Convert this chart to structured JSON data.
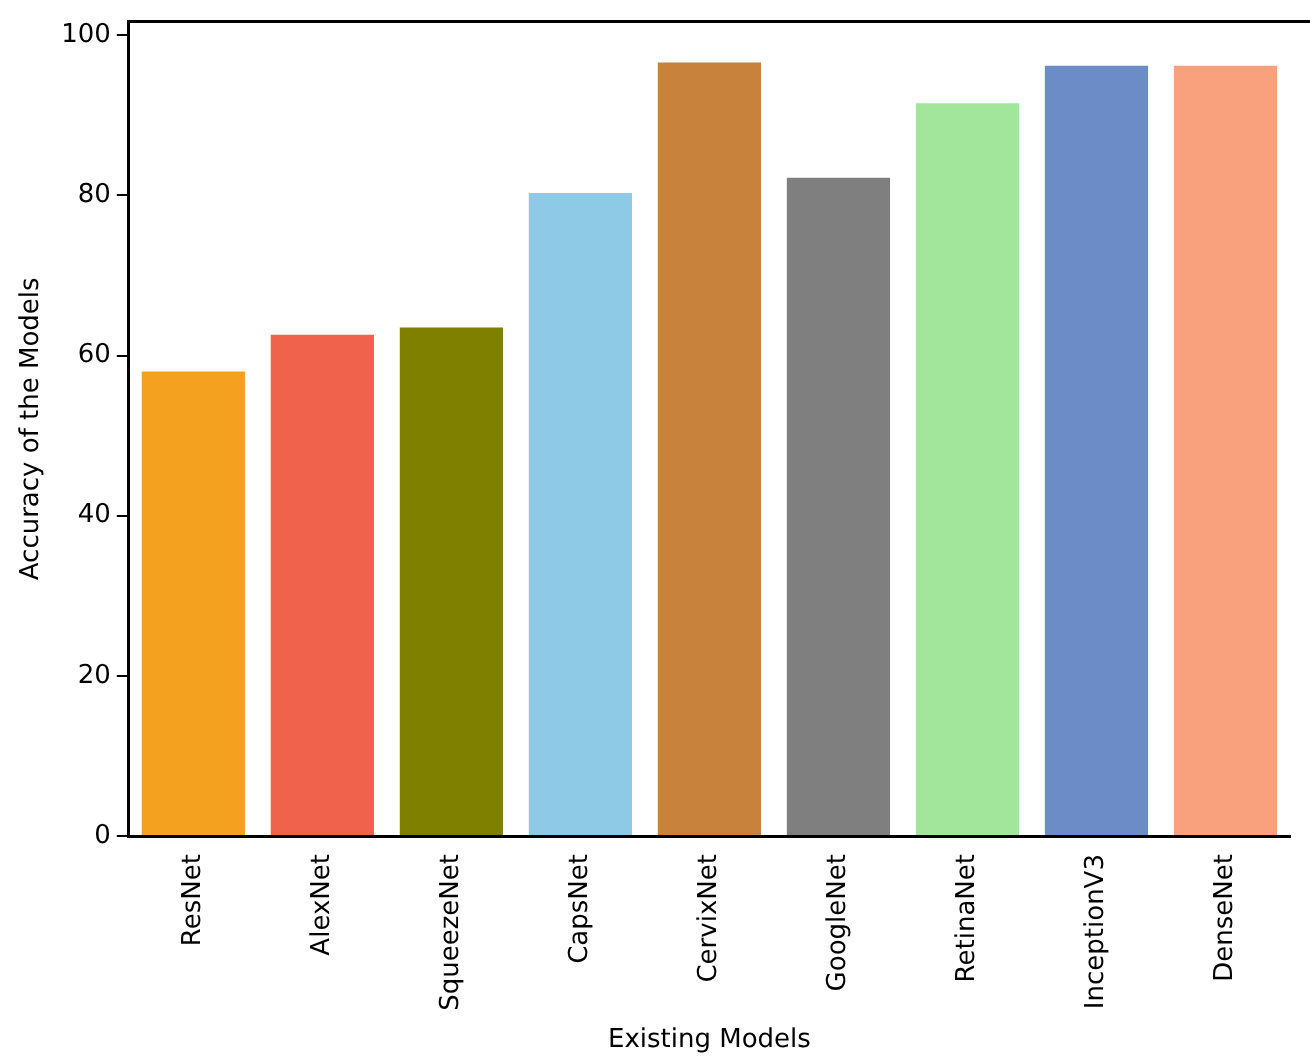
{
  "chart_data": {
    "type": "bar",
    "xlabel": "Existing Models",
    "ylabel": "Accuracy of the Models",
    "categories": [
      "ResNet",
      "AlexNet",
      "SqueezeNet",
      "CapsNet",
      "CervixNet",
      "GoogleNet",
      "RetinaNet",
      "InceptionV3",
      "DenseNet"
    ],
    "values": [
      58.0,
      62.6,
      63.5,
      80.3,
      96.6,
      82.2,
      91.5,
      96.2,
      96.2
    ],
    "colors": [
      "#f4a11f",
      "#f0624b",
      "#808000",
      "#8ecae6",
      "#c8823c",
      "#7f7f7f",
      "#a2e69b",
      "#6b8cc7",
      "#f9a07c"
    ],
    "ylim": [
      0,
      101.7
    ],
    "yticks": [
      0,
      20,
      40,
      60,
      80,
      100
    ],
    "grid": false,
    "legend": false
  }
}
